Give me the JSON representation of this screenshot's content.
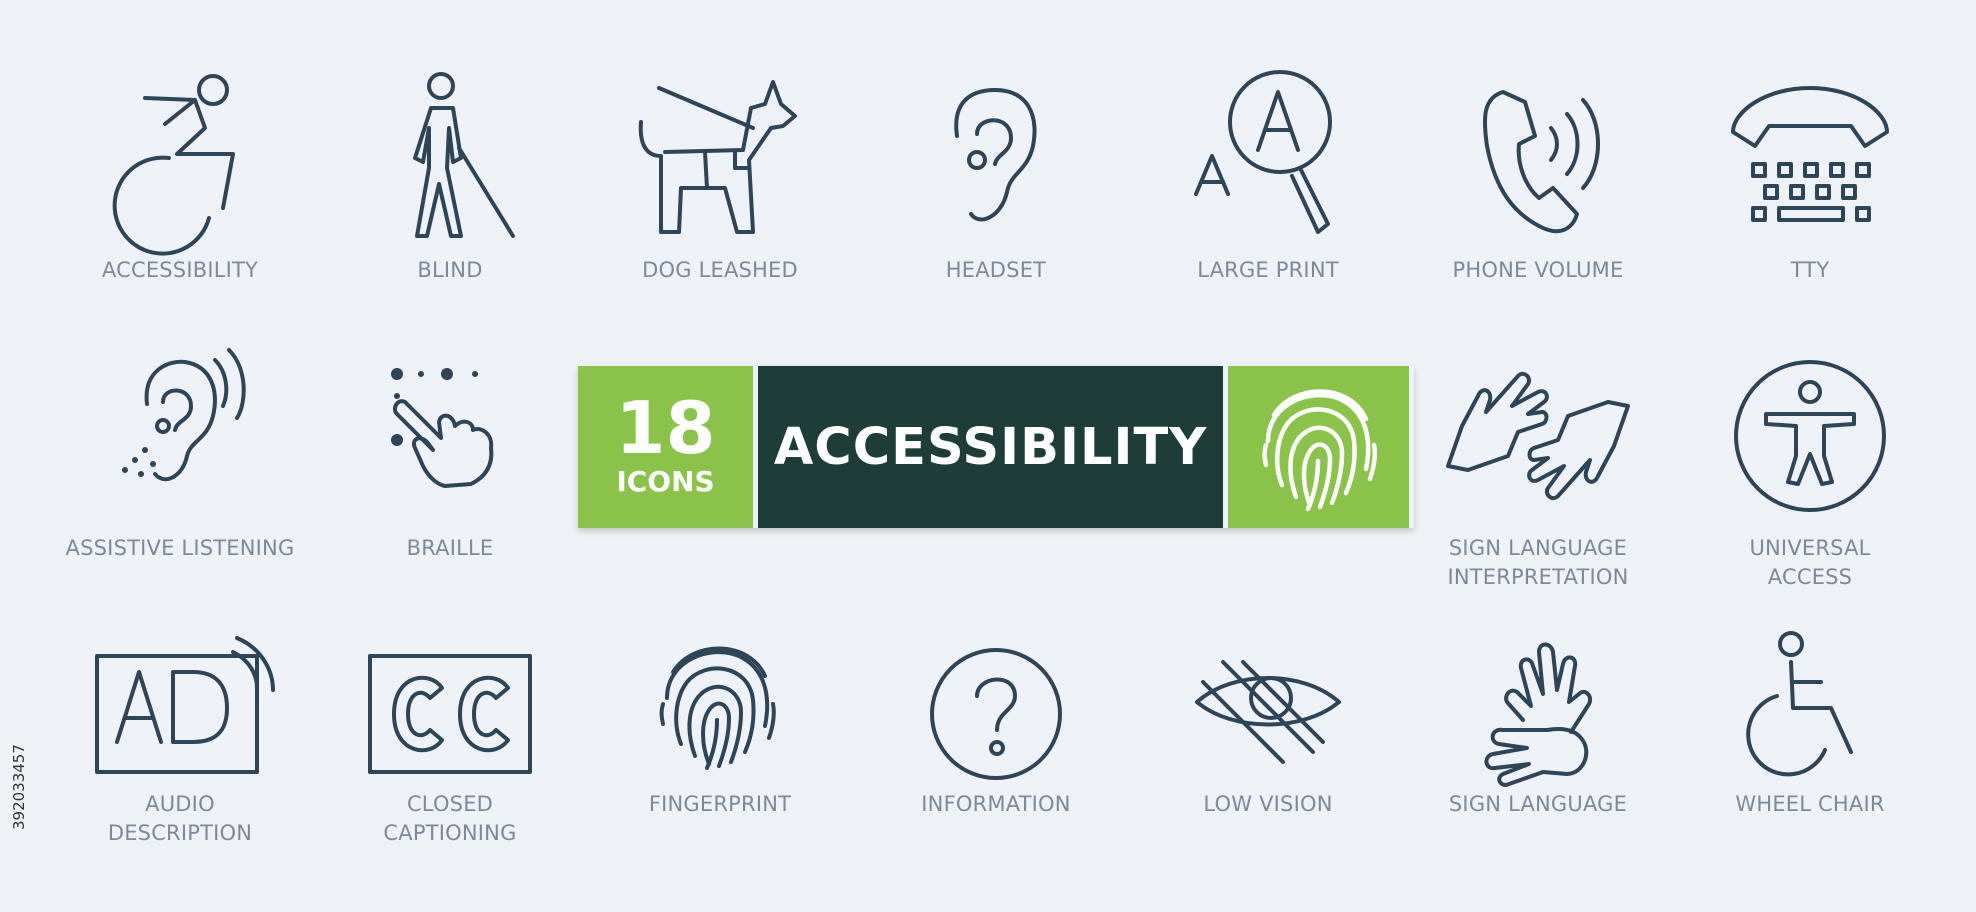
{
  "banner": {
    "count": "18",
    "count_word": "ICONS",
    "title": "ACCESSIBILITY"
  },
  "icons": [
    {
      "label": "ACCESSIBILITY",
      "icon": "accessibility-icon"
    },
    {
      "label": "BLIND",
      "icon": "blind-person-icon"
    },
    {
      "label": "DOG LEASHED",
      "icon": "guide-dog-icon"
    },
    {
      "label": "HEADSET",
      "icon": "ear-icon"
    },
    {
      "label": "LARGE PRINT",
      "icon": "large-print-icon"
    },
    {
      "label": "PHONE VOLUME",
      "icon": "phone-volume-icon"
    },
    {
      "label": "TTY",
      "icon": "tty-icon"
    },
    {
      "label": "ASSISTIVE LISTENING",
      "icon": "assistive-listening-icon"
    },
    {
      "label": "BRAILLE",
      "icon": "braille-icon"
    },
    {
      "label": "SIGN LANGUAGE\nINTERPRETATION",
      "icon": "sign-language-interpretation-icon"
    },
    {
      "label": "UNIVERSAL\nACCESS",
      "icon": "universal-access-icon"
    },
    {
      "label": "AUDIO\nDESCRIPTION",
      "icon": "audio-description-icon"
    },
    {
      "label": "CLOSED\nCAPTIONING",
      "icon": "closed-captioning-icon"
    },
    {
      "label": "FINGERPRINT",
      "icon": "fingerprint-icon"
    },
    {
      "label": "INFORMATION",
      "icon": "information-icon"
    },
    {
      "label": "LOW VISION",
      "icon": "low-vision-icon"
    },
    {
      "label": "SIGN LANGUAGE",
      "icon": "sign-language-icon"
    },
    {
      "label": "WHEEL CHAIR",
      "icon": "wheelchair-icon"
    }
  ],
  "stock_id": "392033457",
  "colors": {
    "icon": "#2e4457",
    "label": "#7c8998",
    "accent": "#8bc34a",
    "dark": "#1e3d39",
    "background": "#eef1f5"
  }
}
